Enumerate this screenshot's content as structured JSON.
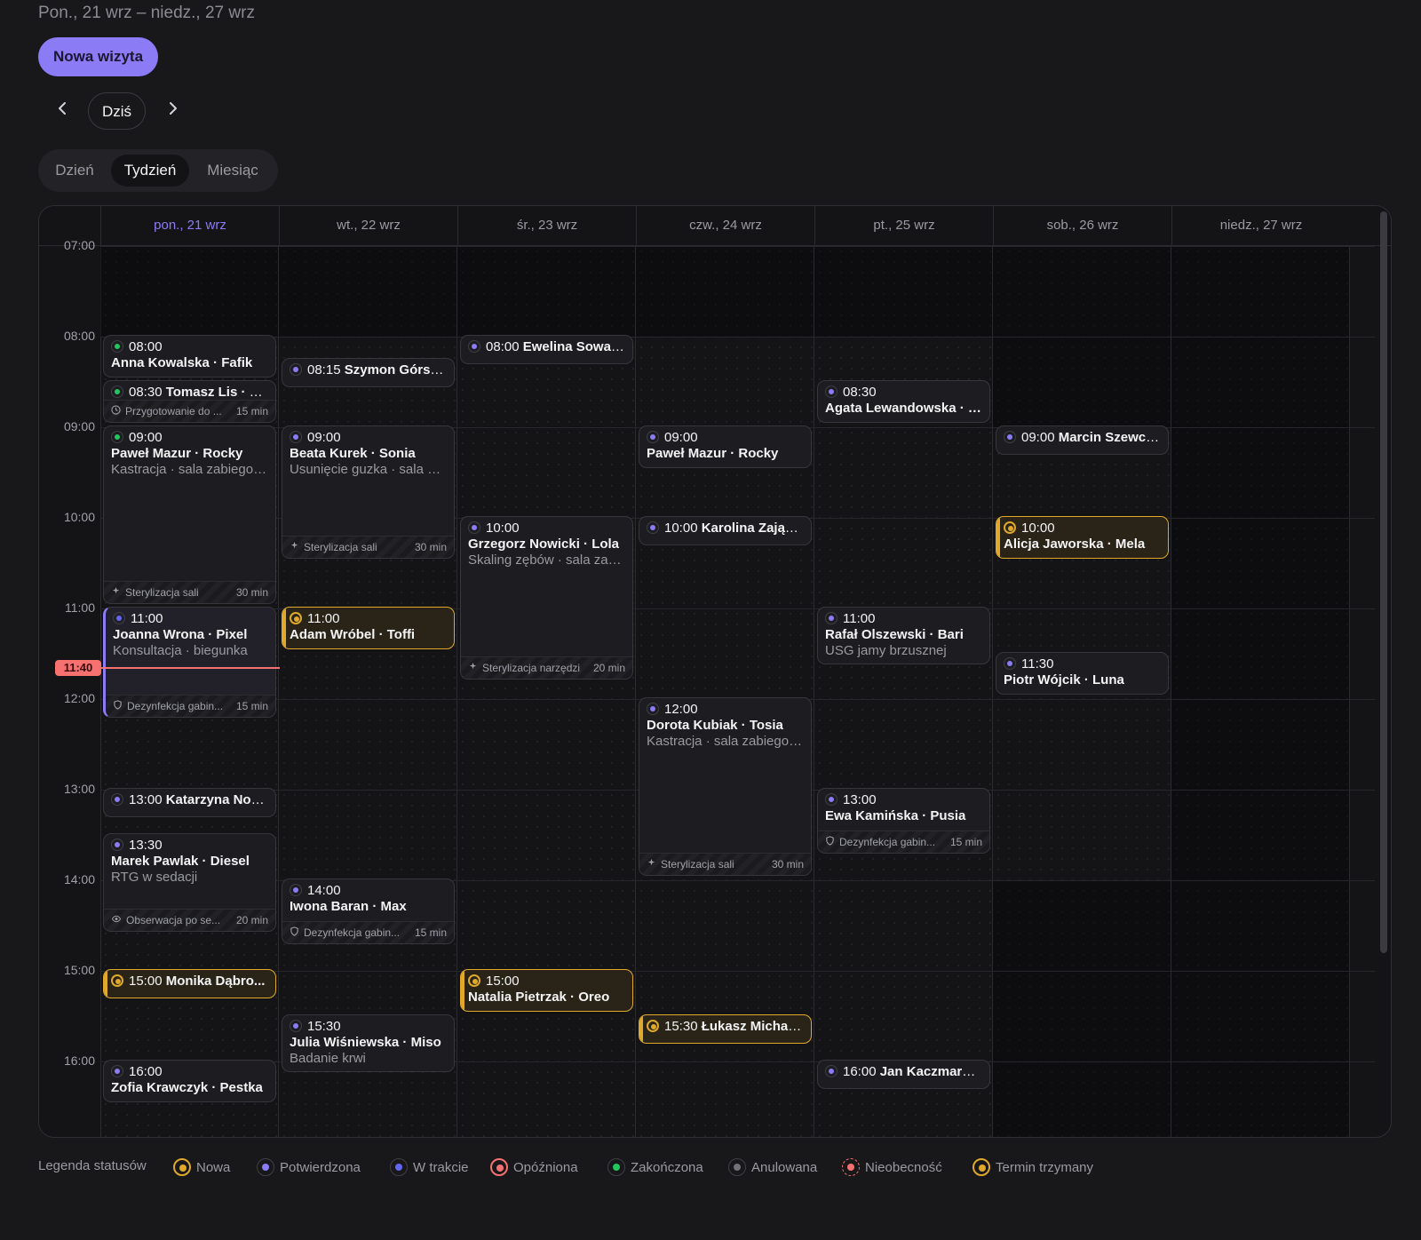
{
  "header": {
    "range": "Pon., 21 wrz – niedz., 27 wrz",
    "new_button": "Nowa wizyta",
    "today": "Dziś",
    "prev_icon": "chevron-left-icon",
    "next_icon": "chevron-right-icon",
    "views": [
      "Dzień",
      "Tydzień",
      "Miesiąc"
    ],
    "active_view": "Tydzień"
  },
  "days": [
    "pon., 21 wrz",
    "wt., 22 wrz",
    "śr., 23 wrz",
    "czw., 24 wrz",
    "pt., 25 wrz",
    "sob., 26 wrz",
    "niedz., 27 wrz"
  ],
  "hours": [
    "07:00",
    "08:00",
    "09:00",
    "10:00",
    "11:00",
    "12:00",
    "13:00",
    "14:00",
    "15:00",
    "16:00"
  ],
  "now": "11:40",
  "colors": {
    "nowa": "#e0a92c",
    "potwierdzona": "#8b7cf6",
    "w_trakcie": "#6366f1",
    "opozniona": "#f87171",
    "zakonczona": "#22c55e",
    "anulowana": "#71717a",
    "nieobecnosc": "#f87171",
    "termin": "#e0a92c"
  },
  "events": [
    {
      "day": 0,
      "start": "08:00",
      "end": "08:30",
      "time": "08:00",
      "name": "Anna Kowalska · Fafik",
      "status": "zakonczona"
    },
    {
      "day": 0,
      "start": "08:30",
      "end": "09:00",
      "time": "08:30",
      "name": "Tomasz Lis · Mr...",
      "status": "zakonczona",
      "inline": true,
      "buffer": {
        "icon": "clock-icon",
        "label": "Przygotowanie do ...",
        "duration": "15 min"
      }
    },
    {
      "day": 0,
      "start": "09:00",
      "end": "11:00",
      "time": "09:00",
      "name": "Paweł Mazur · Rocky",
      "detail": "Kastracja · sala zabiegowa",
      "status": "zakonczona",
      "buffer": {
        "icon": "sparkle-icon",
        "label": "Sterylizacja sali",
        "duration": "30 min"
      }
    },
    {
      "day": 0,
      "start": "11:00",
      "end": "12:15",
      "time": "11:00",
      "name": "Joanna Wrona · Pixel",
      "detail": "Konsultacja · biegunka",
      "status": "w_trakcie",
      "live": true,
      "buffer": {
        "icon": "shield-icon",
        "label": "Dezynfekcja gabin...",
        "duration": "15 min"
      }
    },
    {
      "day": 0,
      "start": "13:00",
      "end": "13:30",
      "time": "13:00",
      "name": "Katarzyna Now...",
      "status": "potwierdzona",
      "inline": true,
      "single": true
    },
    {
      "day": 0,
      "start": "13:30",
      "end": "14:37",
      "time": "13:30",
      "name": "Marek Pawlak · Diesel",
      "detail": "RTG w sedacji",
      "status": "potwierdzona",
      "buffer": {
        "icon": "eye-icon",
        "label": "Obserwacja po se...",
        "duration": "20 min"
      }
    },
    {
      "day": 0,
      "start": "15:00",
      "end": "15:30",
      "time": "15:00",
      "name": "Monika Dąbro...",
      "status": "nowa",
      "inline": true,
      "single": true
    },
    {
      "day": 0,
      "start": "16:00",
      "end": "16:30",
      "time": "16:00",
      "name": "Zofia Krawczyk · Pestka",
      "status": "potwierdzona"
    },
    {
      "day": 1,
      "start": "08:15",
      "end": "08:45",
      "time": "08:15",
      "name": "Szymon Górski...",
      "status": "potwierdzona",
      "inline": true,
      "single": true
    },
    {
      "day": 1,
      "start": "09:00",
      "end": "10:30",
      "time": "09:00",
      "name": "Beata Kurek · Sonia",
      "detail": "Usunięcie guzka · sala zab...",
      "status": "potwierdzona",
      "buffer": {
        "icon": "sparkle-icon",
        "label": "Sterylizacja sali",
        "duration": "30 min"
      }
    },
    {
      "day": 1,
      "start": "11:00",
      "end": "11:30",
      "time": "11:00",
      "name": "Adam Wróbel · Toffi",
      "status": "nowa"
    },
    {
      "day": 1,
      "start": "14:00",
      "end": "14:45",
      "time": "14:00",
      "name": "Iwona Baran · Max",
      "status": "potwierdzona",
      "buffer": {
        "icon": "shield-icon",
        "label": "Dezynfekcja gabin...",
        "duration": "15 min"
      }
    },
    {
      "day": 1,
      "start": "15:30",
      "end": "16:10",
      "time": "15:30",
      "name": "Julia Wiśniewska · Miso",
      "detail": "Badanie krwi",
      "status": "potwierdzona"
    },
    {
      "day": 2,
      "start": "08:00",
      "end": "08:20",
      "time": "08:00",
      "name": "Ewelina Sowa · ...",
      "status": "potwierdzona",
      "inline": true,
      "single": true
    },
    {
      "day": 2,
      "start": "10:00",
      "end": "11:50",
      "time": "10:00",
      "name": "Grzegorz Nowicki · Lola",
      "detail": "Skaling zębów · sala zabi...",
      "status": "potwierdzona",
      "buffer": {
        "icon": "sparkle-icon",
        "label": "Sterylizacja narzędzi",
        "duration": "20 min"
      }
    },
    {
      "day": 2,
      "start": "15:00",
      "end": "15:30",
      "time": "15:00",
      "name": "Natalia Pietrzak · Oreo",
      "status": "nowa"
    },
    {
      "day": 3,
      "start": "09:00",
      "end": "09:30",
      "time": "09:00",
      "name": "Paweł Mazur · Rocky",
      "status": "potwierdzona"
    },
    {
      "day": 3,
      "start": "10:00",
      "end": "10:20",
      "time": "10:00",
      "name": "Karolina Zając · ...",
      "status": "potwierdzona",
      "inline": true,
      "single": true
    },
    {
      "day": 3,
      "start": "12:00",
      "end": "14:00",
      "time": "12:00",
      "name": "Dorota Kubiak · Tosia",
      "detail": "Kastracja · sala zabiegowa",
      "status": "potwierdzona",
      "buffer": {
        "icon": "sparkle-icon",
        "label": "Sterylizacja sali",
        "duration": "30 min"
      }
    },
    {
      "day": 3,
      "start": "15:30",
      "end": "15:50",
      "time": "15:30",
      "name": "Łukasz Michala...",
      "status": "nowa",
      "inline": true,
      "single": true
    },
    {
      "day": 4,
      "start": "08:30",
      "end": "09:00",
      "time": "08:30",
      "name": "Agata Lewandowska · N...",
      "status": "potwierdzona"
    },
    {
      "day": 4,
      "start": "11:00",
      "end": "11:40",
      "time": "11:00",
      "name": "Rafał Olszewski · Bari",
      "detail": "USG jamy brzusznej",
      "status": "potwierdzona"
    },
    {
      "day": 4,
      "start": "13:00",
      "end": "13:45",
      "time": "13:00",
      "name": "Ewa Kamińska · Pusia",
      "status": "potwierdzona",
      "buffer": {
        "icon": "shield-icon",
        "label": "Dezynfekcja gabin...",
        "duration": "15 min"
      }
    },
    {
      "day": 4,
      "start": "16:00",
      "end": "16:20",
      "time": "16:00",
      "name": "Jan Kaczmarek ...",
      "status": "potwierdzona",
      "inline": true,
      "single": true
    },
    {
      "day": 5,
      "start": "09:00",
      "end": "09:20",
      "time": "09:00",
      "name": "Marcin Szewcz...",
      "status": "potwierdzona",
      "inline": true,
      "single": true
    },
    {
      "day": 5,
      "start": "10:00",
      "end": "10:30",
      "time": "10:00",
      "name": "Alicja Jaworska · Mela",
      "status": "nowa"
    },
    {
      "day": 5,
      "start": "11:30",
      "end": "12:00",
      "time": "11:30",
      "name": "Piotr Wójcik · Luna",
      "status": "potwierdzona"
    }
  ],
  "legend": {
    "title": "Legenda statusów",
    "items": [
      {
        "label": "Nowa",
        "status": "nowa",
        "style": "ring"
      },
      {
        "label": "Potwierdzona",
        "status": "potwierdzona",
        "style": "plain"
      },
      {
        "label": "W trakcie",
        "status": "w_trakcie",
        "style": "plain"
      },
      {
        "label": "Opóźniona",
        "status": "opozniona",
        "style": "ring"
      },
      {
        "label": "Zakończona",
        "status": "zakonczona",
        "style": "plain"
      },
      {
        "label": "Anulowana",
        "status": "anulowana",
        "style": "plain"
      },
      {
        "label": "Nieobecność",
        "status": "nieobecnosc",
        "style": "dash"
      },
      {
        "label": "Termin trzymany",
        "status": "termin",
        "style": "ring"
      }
    ]
  }
}
